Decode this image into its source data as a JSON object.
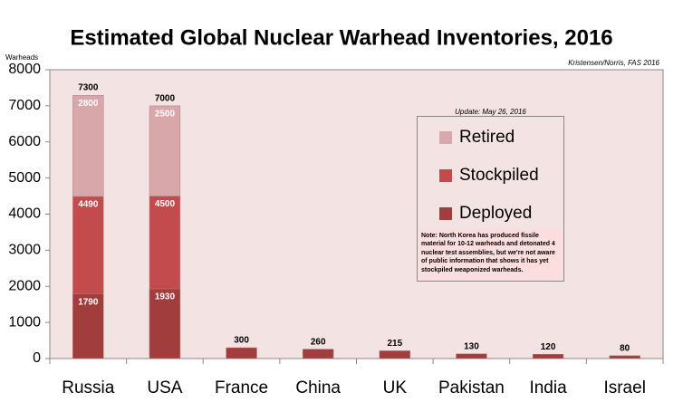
{
  "chart_data": {
    "type": "bar",
    "title": "Estimated Global Nuclear Warhead Inventories, 2016",
    "y_axis_label": "Warheads",
    "source": "Kristensen/Norris, FAS 2016",
    "update": "Update: May 26, 2016",
    "note": "Note: North Korea has produced fissile material for 10-12 warheads and detonated 4 nuclear test assemblies, but we're not aware of public information that shows it has yet stockpiled weaponized warheads.",
    "categories": [
      "Russia",
      "USA",
      "France",
      "China",
      "UK",
      "Pakistan",
      "India",
      "Israel"
    ],
    "series": [
      {
        "name": "Retired",
        "color": "#d8a7aa",
        "values": [
          2800,
          2500,
          null,
          null,
          null,
          null,
          null,
          null
        ]
      },
      {
        "name": "Stockpiled",
        "color": "#c34b4d",
        "values": [
          4490,
          4500,
          null,
          null,
          null,
          null,
          null,
          null
        ]
      },
      {
        "name": "Deployed",
        "color": "#a23d3d",
        "values": [
          1790,
          1930,
          null,
          null,
          null,
          null,
          null,
          null
        ]
      }
    ],
    "totals": [
      7300,
      7000,
      300,
      260,
      215,
      130,
      120,
      80
    ],
    "ylim": [
      0,
      8000
    ],
    "yticks": [
      0,
      1000,
      2000,
      3000,
      4000,
      5000,
      6000,
      7000,
      8000
    ],
    "grid": false
  }
}
